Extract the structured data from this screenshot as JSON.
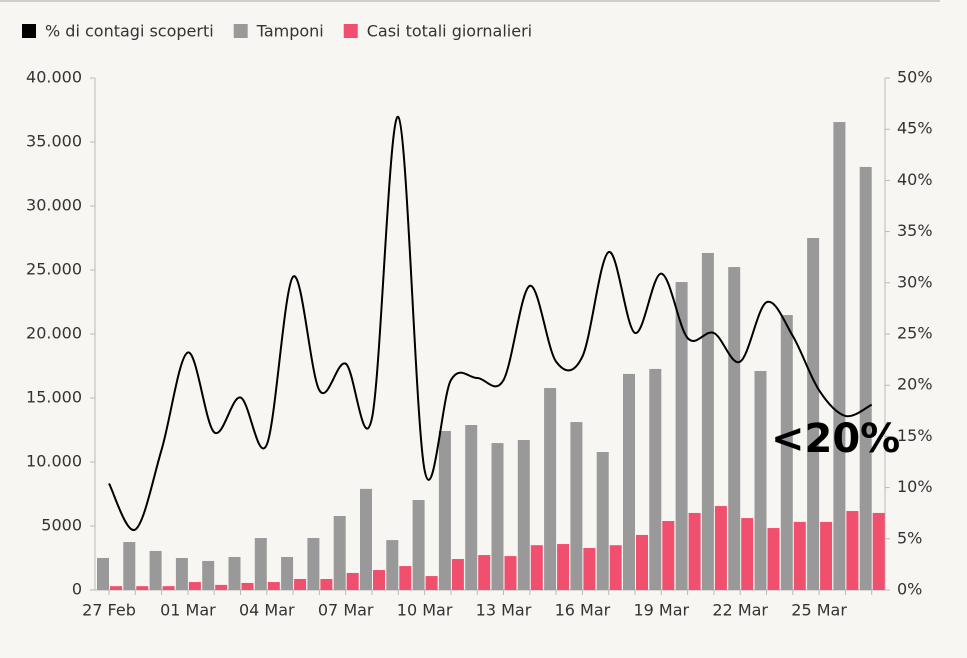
{
  "chart_data": {
    "type": "bar-line",
    "categories": [
      "27 Feb",
      null,
      null,
      "01 Mar",
      null,
      null,
      "04 Mar",
      null,
      null,
      "07 Mar",
      null,
      null,
      "10 Mar",
      null,
      null,
      "13 Mar",
      null,
      null,
      "16 Mar",
      null,
      null,
      "19 Mar",
      null,
      null,
      "22 Mar",
      null,
      null,
      "25 Mar",
      null,
      null
    ],
    "series": [
      {
        "name": "% di contagi scoperti",
        "color": "#000000",
        "kind": "line",
        "axis": "y2",
        "values": [
          10.4,
          5.9,
          13.7,
          23.2,
          15.4,
          18.8,
          14.2,
          30.6,
          19.5,
          22.1,
          16.8,
          46.2,
          11.7,
          20.5,
          20.7,
          20.5,
          29.7,
          22.3,
          22.8,
          33.0,
          25.1,
          30.9,
          24.6,
          25.1,
          22.3,
          28.1,
          24.8,
          19.5,
          17.0,
          18.1
        ]
      },
      {
        "name": "Tamponi",
        "color": "#999999",
        "kind": "bar",
        "values": [
          2500,
          3750,
          3050,
          2500,
          2270,
          2580,
          4060,
          2580,
          4060,
          5780,
          7900,
          3900,
          7030,
          12420,
          12890,
          11480,
          11720,
          15780,
          13120,
          10780,
          16880,
          17270,
          24060,
          26330,
          25230,
          17110,
          21480,
          27500,
          36560,
          33050
        ]
      },
      {
        "name": "Casi totali giornalieri",
        "color": "#f0506e",
        "kind": "bar",
        "values": [
          300,
          300,
          300,
          620,
          400,
          550,
          620,
          860,
          860,
          1330,
          1560,
          1870,
          1090,
          2420,
          2730,
          2650,
          3500,
          3590,
          3280,
          3500,
          4300,
          5390,
          6020,
          6560,
          5620,
          4840,
          5320,
          5320,
          6170,
          6020
        ]
      }
    ],
    "ylim": [
      0,
      40000
    ],
    "yticks": [
      0,
      5000,
      {
        "value": 10000,
        "label": "10.000"
      },
      {
        "value": 15000,
        "label": "15.000"
      },
      {
        "value": 20000,
        "label": "20.000"
      },
      {
        "value": 25000,
        "label": "25.000"
      },
      {
        "value": 30000,
        "label": "30.000"
      },
      {
        "value": 35000,
        "label": "35.000"
      },
      {
        "value": 40000,
        "label": "40.000"
      }
    ],
    "y2lim": [
      0,
      50
    ],
    "y2ticks": [
      {
        "value": 0,
        "label": "0%"
      },
      {
        "value": 5,
        "label": "5%"
      },
      {
        "value": 10,
        "label": "10%"
      },
      {
        "value": 15,
        "label": "15%"
      },
      {
        "value": 20,
        "label": "20%"
      },
      {
        "value": 25,
        "label": "25%"
      },
      {
        "value": 30,
        "label": "30%"
      },
      {
        "value": 35,
        "label": "35%"
      },
      {
        "value": 40,
        "label": "40%"
      },
      {
        "value": 45,
        "label": "45%"
      },
      {
        "value": 50,
        "label": "50%"
      }
    ],
    "annotation": "<20%",
    "legend": "top-left"
  }
}
